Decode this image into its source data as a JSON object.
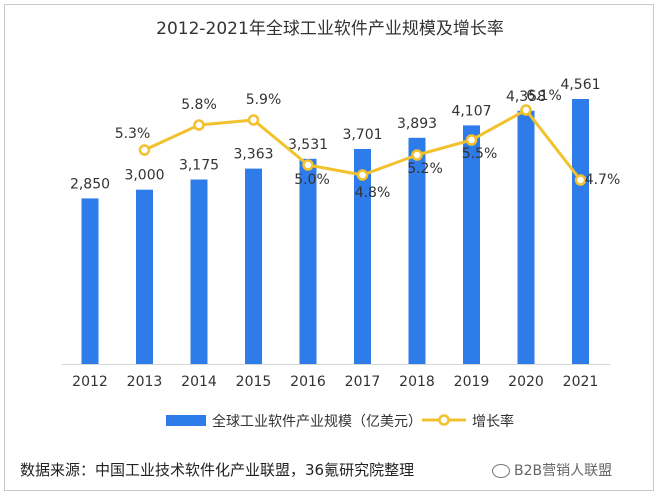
{
  "chart_data": {
    "type": "bar",
    "title": "2012-2021年全球工业软件产业规模及增长率",
    "categories": [
      "2012",
      "2013",
      "2014",
      "2015",
      "2016",
      "2017",
      "2018",
      "2019",
      "2020",
      "2021"
    ],
    "series": [
      {
        "name": "全球工业软件产业规模（亿美元）",
        "type": "bar",
        "color": "#2e7bea",
        "values": [
          2850,
          3000,
          3175,
          3363,
          3531,
          3701,
          3893,
          4107,
          4358,
          4561
        ],
        "labels": [
          "2,850",
          "3,000",
          "3,175",
          "3,363",
          "3,531",
          "3,701",
          "3,893",
          "4,107",
          "4,358",
          "4,561"
        ]
      },
      {
        "name": "增长率",
        "type": "line",
        "color": "#f2c12e",
        "values": [
          null,
          5.3,
          5.8,
          5.9,
          5.0,
          4.8,
          5.2,
          5.5,
          6.1,
          4.7
        ],
        "labels": [
          null,
          "5.3%",
          "5.8%",
          "5.9%",
          "5.0%",
          "4.8%",
          "5.2%",
          "5.5%",
          "6.1%",
          "4.7%"
        ]
      }
    ],
    "grid": false,
    "legend": "bottom"
  },
  "source_text": "数据来源：中国工业技术软件化产业联盟，36氪研究院整理",
  "watermark_text": "B2B营销人联盟"
}
